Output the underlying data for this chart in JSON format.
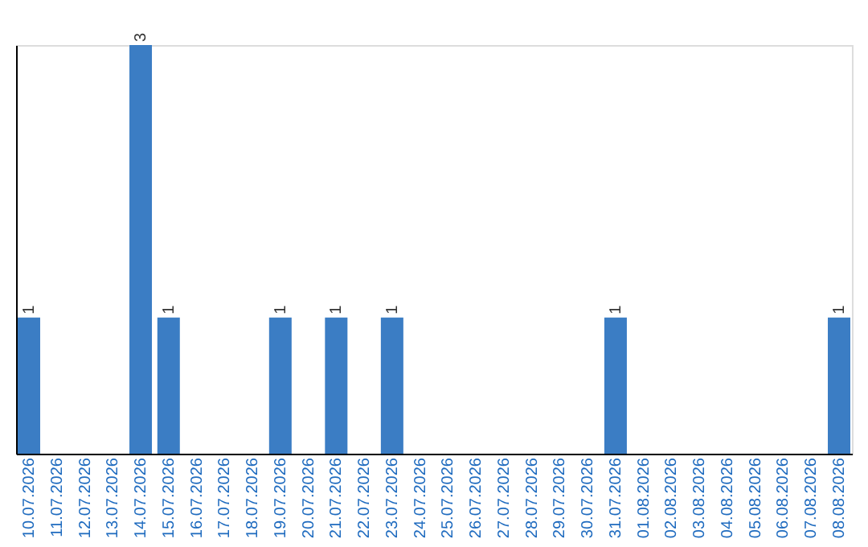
{
  "chart_data": {
    "type": "bar",
    "categories": [
      "10.07.2026",
      "11.07.2026",
      "12.07.2026",
      "13.07.2026",
      "14.07.2026",
      "15.07.2026",
      "16.07.2026",
      "17.07.2026",
      "18.07.2026",
      "19.07.2026",
      "20.07.2026",
      "21.07.2026",
      "22.07.2026",
      "23.07.2026",
      "24.07.2026",
      "25.07.2026",
      "26.07.2026",
      "27.07.2026",
      "28.07.2026",
      "29.07.2026",
      "30.07.2026",
      "31.07.2026",
      "01.08.2026",
      "02.08.2026",
      "03.08.2026",
      "04.08.2026",
      "05.08.2026",
      "06.08.2026",
      "07.08.2026",
      "08.08.2026"
    ],
    "values": [
      1,
      0,
      0,
      0,
      3,
      1,
      0,
      0,
      0,
      1,
      0,
      1,
      0,
      1,
      0,
      0,
      0,
      0,
      0,
      0,
      0,
      1,
      0,
      0,
      0,
      0,
      0,
      0,
      0,
      1
    ],
    "value_labels": [
      "1",
      null,
      null,
      null,
      "3",
      "1",
      null,
      null,
      null,
      "1",
      null,
      "1",
      null,
      "1",
      null,
      null,
      null,
      null,
      null,
      null,
      null,
      "1",
      null,
      null,
      null,
      null,
      null,
      null,
      null,
      "1"
    ],
    "color": "#3b7dc4",
    "tick_labels": "x",
    "grid": false
  }
}
